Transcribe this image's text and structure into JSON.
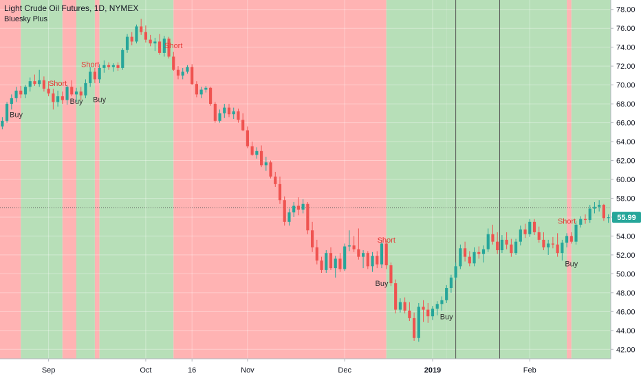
{
  "header": {
    "title": "Light Crude Oil Futures, 1D, NYMEX",
    "indicator": "Bluesky Plus"
  },
  "colors": {
    "up": "#26a69a",
    "down": "#ef5350",
    "zone_long": "#b7dfb8",
    "zone_short": "#ffb3b3",
    "badge": "#26a69a",
    "short_text": "#e53935",
    "buy_text": "#333333"
  },
  "chart_data": {
    "type": "candlestick",
    "title": "Light Crude Oil Futures, 1D, NYMEX",
    "ylim": [
      41,
      79
    ],
    "y_ticks": [
      "42.00",
      "44.00",
      "46.00",
      "48.00",
      "50.00",
      "52.00",
      "54.00",
      "56.00",
      "58.00",
      "60.00",
      "62.00",
      "64.00",
      "66.00",
      "68.00",
      "70.00",
      "72.00",
      "74.00",
      "76.00",
      "78.00"
    ],
    "y_tick_values": [
      42,
      44,
      46,
      48,
      50,
      52,
      54,
      56,
      58,
      60,
      62,
      64,
      66,
      68,
      70,
      72,
      74,
      76,
      78
    ],
    "x_ticks": [
      {
        "label": "Sep",
        "day": 10,
        "bold": false
      },
      {
        "label": "Oct",
        "day": 31,
        "bold": false
      },
      {
        "label": "16",
        "day": 41,
        "bold": false
      },
      {
        "label": "Nov",
        "day": 53,
        "bold": false
      },
      {
        "label": "Dec",
        "day": 74,
        "bold": false
      },
      {
        "label": "2019",
        "day": 93,
        "bold": true
      },
      {
        "label": "Feb",
        "day": 114,
        "bold": false
      }
    ],
    "total_days": 132,
    "last_price": "55.99",
    "last_price_value": 55.99,
    "last_price_line": 57.0,
    "grid": true,
    "zones": [
      {
        "from": 0,
        "to": 4.5,
        "side": "short"
      },
      {
        "from": 4.5,
        "to": 13.5,
        "side": "long"
      },
      {
        "from": 13.5,
        "to": 16.5,
        "side": "short"
      },
      {
        "from": 16.5,
        "to": 20.5,
        "side": "long"
      },
      {
        "from": 20.5,
        "to": 21.5,
        "side": "short"
      },
      {
        "from": 21.5,
        "to": 37.5,
        "side": "long"
      },
      {
        "from": 37.5,
        "to": 83.5,
        "side": "short"
      },
      {
        "from": 83.5,
        "to": 96.5,
        "side": "long"
      },
      {
        "from": 96.5,
        "to": 122.5,
        "side": "long"
      },
      {
        "from": 122.5,
        "to": 123.5,
        "side": "short"
      },
      {
        "from": 123.5,
        "to": 132,
        "side": "long"
      }
    ],
    "signals": [
      {
        "label": "Buy",
        "day": 3,
        "value": 67.4,
        "type": "buy"
      },
      {
        "label": "Short",
        "day": 12,
        "value": 69.6,
        "type": "short"
      },
      {
        "label": "Buy",
        "day": 16,
        "value": 68.8,
        "type": "buy"
      },
      {
        "label": "Short",
        "day": 19,
        "value": 71.6,
        "type": "short"
      },
      {
        "label": "Buy",
        "day": 21,
        "value": 69.0,
        "type": "buy"
      },
      {
        "label": "Short",
        "day": 37,
        "value": 73.6,
        "type": "short"
      },
      {
        "label": "Short",
        "day": 83,
        "value": 53.0,
        "type": "short"
      },
      {
        "label": "Buy",
        "day": 82,
        "value": 49.5,
        "type": "buy"
      },
      {
        "label": "Buy",
        "day": 96,
        "value": 46.0,
        "type": "buy"
      },
      {
        "label": "Short",
        "day": 122,
        "value": 55.0,
        "type": "short"
      },
      {
        "label": "Buy",
        "day": 123,
        "value": 51.6,
        "type": "buy"
      }
    ],
    "candles": [
      [
        65.6,
        66.6,
        65.3,
        66.2
      ],
      [
        66.2,
        68.2,
        66.0,
        68.0
      ],
      [
        68.0,
        69.0,
        67.4,
        68.6
      ],
      [
        68.6,
        69.8,
        68.2,
        69.4
      ],
      [
        69.4,
        69.9,
        68.6,
        69.0
      ],
      [
        69.0,
        70.0,
        68.6,
        69.8
      ],
      [
        69.8,
        70.8,
        69.3,
        70.4
      ],
      [
        70.4,
        71.1,
        69.9,
        70.1
      ],
      [
        70.1,
        71.6,
        69.8,
        70.5
      ],
      [
        70.5,
        70.9,
        69.3,
        69.6
      ],
      [
        69.6,
        70.4,
        68.8,
        69.1
      ],
      [
        69.1,
        69.6,
        67.4,
        68.2
      ],
      [
        68.2,
        69.4,
        67.7,
        68.8
      ],
      [
        68.8,
        69.3,
        68.0,
        68.4
      ],
      [
        68.4,
        70.0,
        67.9,
        69.8
      ],
      [
        69.8,
        70.5,
        68.8,
        69.0
      ],
      [
        69.0,
        69.7,
        68.2,
        69.3
      ],
      [
        69.3,
        69.8,
        68.4,
        68.9
      ],
      [
        68.9,
        70.6,
        68.6,
        70.2
      ],
      [
        70.2,
        71.9,
        69.8,
        71.4
      ],
      [
        71.4,
        71.8,
        70.2,
        70.6
      ],
      [
        70.6,
        72.2,
        70.2,
        71.8
      ],
      [
        71.8,
        72.6,
        71.3,
        72.1
      ],
      [
        72.1,
        72.4,
        71.6,
        71.9
      ],
      [
        71.9,
        72.3,
        71.4,
        72.1
      ],
      [
        72.1,
        72.4,
        71.5,
        71.8
      ],
      [
        71.8,
        73.9,
        71.6,
        73.7
      ],
      [
        73.7,
        75.4,
        73.4,
        75.1
      ],
      [
        75.1,
        75.6,
        74.2,
        74.6
      ],
      [
        74.6,
        76.4,
        74.4,
        76.2
      ],
      [
        76.2,
        77.0,
        75.3,
        75.6
      ],
      [
        75.6,
        76.3,
        74.5,
        74.8
      ],
      [
        74.8,
        75.3,
        74.1,
        74.4
      ],
      [
        74.4,
        75.0,
        73.6,
        74.6
      ],
      [
        74.6,
        75.4,
        73.2,
        73.4
      ],
      [
        73.4,
        75.2,
        73.0,
        74.9
      ],
      [
        74.9,
        75.1,
        72.8,
        73.0
      ],
      [
        73.0,
        73.5,
        71.5,
        71.6
      ],
      [
        71.6,
        72.0,
        70.6,
        71.0
      ],
      [
        71.0,
        71.8,
        70.6,
        71.4
      ],
      [
        71.4,
        72.1,
        71.2,
        71.9
      ],
      [
        71.9,
        72.2,
        70.0,
        70.1
      ],
      [
        70.1,
        70.4,
        68.7,
        69.0
      ],
      [
        69.0,
        69.8,
        68.6,
        69.5
      ],
      [
        69.5,
        69.9,
        69.2,
        69.7
      ],
      [
        69.7,
        69.8,
        67.8,
        68.0
      ],
      [
        68.0,
        68.2,
        66.0,
        66.2
      ],
      [
        66.2,
        67.4,
        66.0,
        67.0
      ],
      [
        67.0,
        68.0,
        66.5,
        67.6
      ],
      [
        67.6,
        68.0,
        66.6,
        66.9
      ],
      [
        66.9,
        67.6,
        66.4,
        67.2
      ],
      [
        67.2,
        67.5,
        66.0,
        66.3
      ],
      [
        66.3,
        67.0,
        65.1,
        65.2
      ],
      [
        65.2,
        65.6,
        63.3,
        63.5
      ],
      [
        63.5,
        64.0,
        62.5,
        62.6
      ],
      [
        62.6,
        63.4,
        62.2,
        63.0
      ],
      [
        63.0,
        63.6,
        61.3,
        61.5
      ],
      [
        61.5,
        62.4,
        60.9,
        61.8
      ],
      [
        61.8,
        62.0,
        60.1,
        60.3
      ],
      [
        60.3,
        60.8,
        59.2,
        59.5
      ],
      [
        59.5,
        60.3,
        57.4,
        57.8
      ],
      [
        57.8,
        58.2,
        55.1,
        55.5
      ],
      [
        55.5,
        56.9,
        55.1,
        56.5
      ],
      [
        56.5,
        57.6,
        56.0,
        57.2
      ],
      [
        57.2,
        58.1,
        56.2,
        56.8
      ],
      [
        56.8,
        57.9,
        56.4,
        57.4
      ],
      [
        57.4,
        57.6,
        54.2,
        54.6
      ],
      [
        54.6,
        55.5,
        52.3,
        52.8
      ],
      [
        52.8,
        53.6,
        51.0,
        51.4
      ],
      [
        51.4,
        51.8,
        50.1,
        50.4
      ],
      [
        50.4,
        52.5,
        50.1,
        52.2
      ],
      [
        52.2,
        52.8,
        50.4,
        50.6
      ],
      [
        50.6,
        51.9,
        49.6,
        51.6
      ],
      [
        51.6,
        52.2,
        50.2,
        50.5
      ],
      [
        50.5,
        53.2,
        50.3,
        52.9
      ],
      [
        52.9,
        54.6,
        52.4,
        53.0
      ],
      [
        53.0,
        54.0,
        52.3,
        52.6
      ],
      [
        52.6,
        54.8,
        51.5,
        51.8
      ],
      [
        51.8,
        52.5,
        50.6,
        52.2
      ],
      [
        52.2,
        52.4,
        50.5,
        50.8
      ],
      [
        50.8,
        52.3,
        50.2,
        51.9
      ],
      [
        51.9,
        52.4,
        50.6,
        51.0
      ],
      [
        51.0,
        53.6,
        50.6,
        53.2
      ],
      [
        53.2,
        53.5,
        50.5,
        50.9
      ],
      [
        50.9,
        51.2,
        48.7,
        49.0
      ],
      [
        49.0,
        49.4,
        45.8,
        46.2
      ],
      [
        46.2,
        47.4,
        45.9,
        47.0
      ],
      [
        47.0,
        47.5,
        45.8,
        46.1
      ],
      [
        46.1,
        47.0,
        45.0,
        45.3
      ],
      [
        45.3,
        45.9,
        42.9,
        43.2
      ],
      [
        43.2,
        46.9,
        42.8,
        46.5
      ],
      [
        46.5,
        47.2,
        44.9,
        46.2
      ],
      [
        46.2,
        46.9,
        44.8,
        45.5
      ],
      [
        45.5,
        46.6,
        45.1,
        46.3
      ],
      [
        46.3,
        47.1,
        45.6,
        46.8
      ],
      [
        46.8,
        47.6,
        46.1,
        47.2
      ],
      [
        47.2,
        48.8,
        46.9,
        48.5
      ],
      [
        48.5,
        49.9,
        48.0,
        49.6
      ],
      [
        49.6,
        51.2,
        49.3,
        50.8
      ],
      [
        50.8,
        53.1,
        50.5,
        52.7
      ],
      [
        52.7,
        53.4,
        51.3,
        51.8
      ],
      [
        51.8,
        52.4,
        50.8,
        51.1
      ],
      [
        51.1,
        52.8,
        50.8,
        52.3
      ],
      [
        52.3,
        52.9,
        51.6,
        52.1
      ],
      [
        52.1,
        53.0,
        51.2,
        52.6
      ],
      [
        52.6,
        54.8,
        52.3,
        54.2
      ],
      [
        54.2,
        55.2,
        53.1,
        53.4
      ],
      [
        53.4,
        54.4,
        52.1,
        52.5
      ],
      [
        52.5,
        54.1,
        52.2,
        53.6
      ],
      [
        53.6,
        54.4,
        52.6,
        53.1
      ],
      [
        53.1,
        53.7,
        51.8,
        52.2
      ],
      [
        52.2,
        53.7,
        52.0,
        53.4
      ],
      [
        53.4,
        55.1,
        53.0,
        54.7
      ],
      [
        54.7,
        55.3,
        53.8,
        54.2
      ],
      [
        54.2,
        55.8,
        53.9,
        55.5
      ],
      [
        55.5,
        55.8,
        54.1,
        54.4
      ],
      [
        54.4,
        55.0,
        53.3,
        53.6
      ],
      [
        53.6,
        54.4,
        52.5,
        52.8
      ],
      [
        52.8,
        53.6,
        52.0,
        53.2
      ],
      [
        53.2,
        53.9,
        52.7,
        53.1
      ],
      [
        53.1,
        54.3,
        51.8,
        52.2
      ],
      [
        52.2,
        53.6,
        51.4,
        53.3
      ],
      [
        53.3,
        54.3,
        52.8,
        54.0
      ],
      [
        54.0,
        54.4,
        53.2,
        53.4
      ],
      [
        53.4,
        55.6,
        53.1,
        55.2
      ],
      [
        55.2,
        56.1,
        54.9,
        55.8
      ],
      [
        55.8,
        56.3,
        55.3,
        55.7
      ],
      [
        55.7,
        57.3,
        55.4,
        56.9
      ],
      [
        56.9,
        57.6,
        56.4,
        57.1
      ],
      [
        57.1,
        57.8,
        56.6,
        57.3
      ],
      [
        57.3,
        57.4,
        55.6,
        55.9
      ],
      [
        55.9,
        56.3,
        55.4,
        55.99
      ]
    ]
  }
}
